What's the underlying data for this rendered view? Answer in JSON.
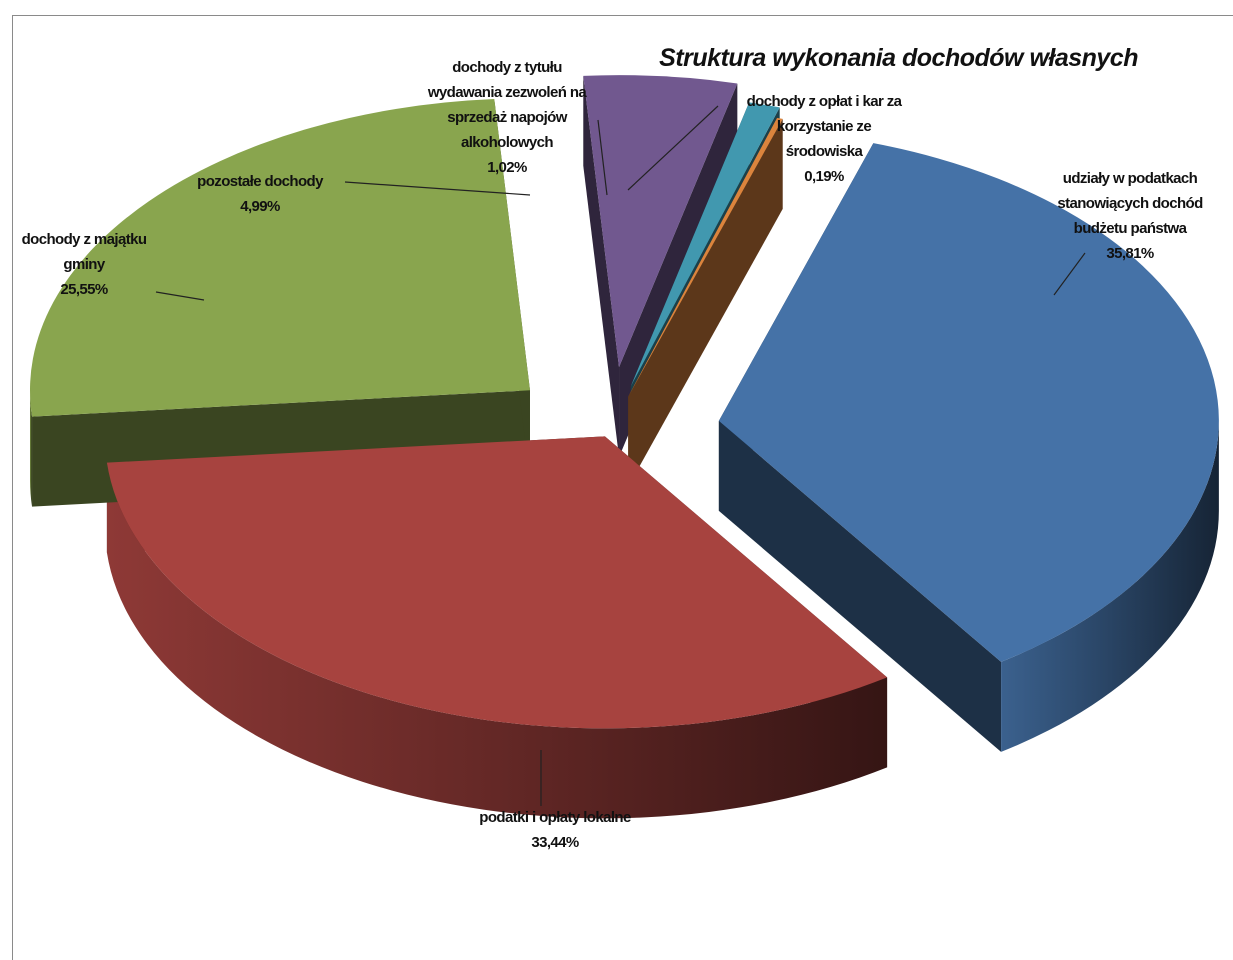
{
  "chart_data": {
    "type": "pie",
    "title": "Struktura wykonania dochodów własnych",
    "slices": [
      {
        "label_lines": [
          "udziały w podatkach",
          "stanowiących dochód",
          "budżetu państwa"
        ],
        "value": 35.81,
        "value_label": "35,81%",
        "color": "#4572A7"
      },
      {
        "label_lines": [
          "podatki i opłaty lokalne"
        ],
        "value": 33.44,
        "value_label": "33,44%",
        "color": "#A7433F"
      },
      {
        "label_lines": [
          "dochody z majątku",
          "gminy"
        ],
        "value": 25.55,
        "value_label": "25,55%",
        "color": "#89A54E"
      },
      {
        "label_lines": [
          "pozostałe dochody"
        ],
        "value": 4.99,
        "value_label": "4,99%",
        "color": "#71588F"
      },
      {
        "label_lines": [
          "dochody z tytułu",
          "wydawania zezwoleń na",
          "sprzedaż napojów",
          "alkoholowych"
        ],
        "value": 1.02,
        "value_label": "1,02%",
        "color": "#4198AF"
      },
      {
        "label_lines": [
          "dochody z opłat i kar za",
          "korzystanie ze",
          "środowiska"
        ],
        "value": 0.19,
        "value_label": "0,19%",
        "color": "#DB843D"
      }
    ]
  }
}
